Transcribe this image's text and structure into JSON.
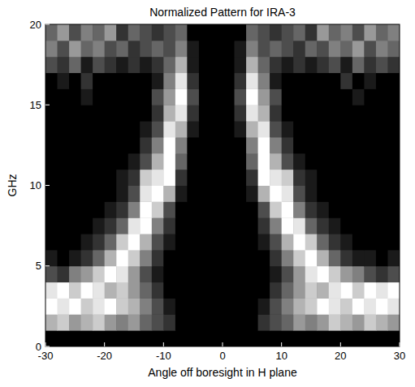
{
  "chart_data": {
    "type": "heatmap",
    "title": "Normalized Pattern for IRA-3",
    "xlabel": "Angle off boresight in H plane",
    "ylabel": "GHz",
    "x": [
      -29,
      -27,
      -25,
      -23,
      -21,
      -19,
      -17,
      -15,
      -13,
      -11,
      -9,
      -7,
      -5,
      -3,
      -1,
      1,
      3,
      5,
      7,
      9,
      11,
      13,
      15,
      17,
      19,
      21,
      23,
      25,
      27,
      29
    ],
    "y": [
      0.5,
      1.5,
      2.5,
      3.5,
      4.5,
      5.5,
      6.5,
      7.5,
      8.5,
      9.5,
      10.5,
      11.5,
      12.5,
      13.5,
      14.5,
      15.5,
      16.5,
      17.5,
      18.5,
      19.5
    ],
    "values": [
      [
        0,
        0,
        0,
        0,
        0,
        0,
        0,
        0,
        0,
        0,
        0,
        0,
        0,
        0,
        0,
        0,
        0,
        0,
        0,
        0,
        0,
        0,
        0,
        0,
        0,
        0,
        0,
        0,
        0,
        0
      ],
      [
        0.7,
        0.8,
        0.6,
        0.7,
        0.8,
        0.6,
        0.5,
        0.6,
        0.4,
        0.3,
        0.2,
        0,
        0,
        0,
        0,
        0,
        0,
        0,
        0.2,
        0.3,
        0.4,
        0.6,
        0.5,
        0.6,
        0.8,
        0.7,
        0.6,
        0.8,
        0.7,
        0.6
      ],
      [
        1,
        0.9,
        1,
        0.8,
        0.9,
        1,
        0.8,
        0.7,
        0.5,
        0.3,
        0.1,
        0,
        0,
        0,
        0,
        0,
        0,
        0,
        0.1,
        0.3,
        0.5,
        0.7,
        0.8,
        1,
        0.9,
        0.8,
        1,
        0.9,
        1,
        0.9
      ],
      [
        0.9,
        1,
        0.8,
        1,
        0.9,
        0.7,
        0.8,
        0.6,
        0.4,
        0.2,
        0,
        0,
        0,
        0,
        0,
        0,
        0,
        0,
        0,
        0.2,
        0.4,
        0.6,
        0.8,
        0.7,
        0.9,
        1,
        0.8,
        1,
        0.9,
        1
      ],
      [
        0.3,
        0.2,
        0.5,
        0.6,
        0.8,
        1,
        0.9,
        0.6,
        0.3,
        0.1,
        0,
        0,
        0,
        0,
        0,
        0,
        0,
        0,
        0,
        0.1,
        0.3,
        0.6,
        0.9,
        1,
        0.8,
        0.6,
        0.5,
        0.3,
        0.2,
        0.3
      ],
      [
        0.1,
        0,
        0.1,
        0.2,
        0.4,
        0.7,
        1,
        0.8,
        0.5,
        0.2,
        0,
        0,
        0,
        0,
        0,
        0,
        0,
        0,
        0,
        0.2,
        0.5,
        0.8,
        1,
        0.7,
        0.4,
        0.2,
        0.1,
        0.1,
        0,
        0.1
      ],
      [
        0,
        0,
        0,
        0.1,
        0.2,
        0.4,
        0.8,
        1,
        0.7,
        0.3,
        0.1,
        0,
        0,
        0,
        0,
        0,
        0,
        0,
        0.1,
        0.3,
        0.7,
        1,
        0.8,
        0.4,
        0.2,
        0.1,
        0,
        0,
        0,
        0
      ],
      [
        0,
        0,
        0,
        0,
        0.1,
        0.2,
        0.4,
        0.9,
        1,
        0.5,
        0.2,
        0,
        0,
        0,
        0,
        0,
        0,
        0,
        0.2,
        0.5,
        1,
        0.9,
        0.4,
        0.2,
        0.1,
        0,
        0,
        0,
        0,
        0
      ],
      [
        0,
        0,
        0,
        0,
        0,
        0.1,
        0.2,
        0.5,
        1,
        0.8,
        0.3,
        0,
        0,
        0,
        0,
        0,
        0,
        0,
        0.3,
        0.8,
        1,
        0.5,
        0.2,
        0.1,
        0,
        0,
        0,
        0,
        0,
        0
      ],
      [
        0,
        0,
        0,
        0,
        0,
        0,
        0.1,
        0.3,
        0.9,
        1,
        0.7,
        0.1,
        0,
        0,
        0,
        0,
        0,
        0.1,
        0.7,
        1,
        0.9,
        0.3,
        0.1,
        0,
        0,
        0,
        0,
        0,
        0,
        0
      ],
      [
        0,
        0,
        0,
        0,
        0,
        0,
        0.1,
        0.2,
        0.8,
        0.9,
        1,
        0.2,
        0,
        0,
        0,
        0,
        0,
        0.2,
        1,
        0.9,
        0.8,
        0.2,
        0.1,
        0,
        0,
        0,
        0,
        0,
        0,
        0
      ],
      [
        0,
        0,
        0,
        0,
        0,
        0,
        0,
        0.1,
        0.3,
        0.7,
        1,
        0.4,
        0,
        0,
        0,
        0,
        0,
        0.4,
        1,
        0.7,
        0.3,
        0.1,
        0,
        0,
        0,
        0,
        0,
        0,
        0,
        0
      ],
      [
        0,
        0,
        0,
        0,
        0,
        0,
        0,
        0,
        0.2,
        0.5,
        1,
        0.5,
        0,
        0,
        0,
        0,
        0,
        0.5,
        1,
        0.5,
        0.2,
        0,
        0,
        0,
        0,
        0,
        0,
        0,
        0,
        0
      ],
      [
        0,
        0,
        0,
        0,
        0,
        0,
        0,
        0,
        0.1,
        0.3,
        0.9,
        0.7,
        0.1,
        0,
        0,
        0,
        0.1,
        0.7,
        0.9,
        0.3,
        0.1,
        0,
        0,
        0,
        0,
        0,
        0,
        0,
        0,
        0
      ],
      [
        0,
        0,
        0,
        0,
        0,
        0,
        0,
        0,
        0,
        0.2,
        0.7,
        0.9,
        0.2,
        0,
        0,
        0,
        0.2,
        0.9,
        0.7,
        0.2,
        0,
        0,
        0,
        0,
        0,
        0,
        0,
        0,
        0,
        0
      ],
      [
        0,
        0,
        0,
        0.1,
        0,
        0,
        0,
        0,
        0,
        0.3,
        0.6,
        1,
        0.3,
        0,
        0,
        0,
        0.3,
        1,
        0.6,
        0.3,
        0,
        0,
        0,
        0,
        0,
        0,
        0.1,
        0,
        0,
        0
      ],
      [
        0,
        0.1,
        0,
        0.2,
        0,
        0,
        0,
        0,
        0,
        0.1,
        0.5,
        0.9,
        0.2,
        0,
        0,
        0,
        0.2,
        0.9,
        0.5,
        0.1,
        0,
        0,
        0,
        0,
        0,
        0.2,
        0,
        0.1,
        0,
        0
      ],
      [
        0.3,
        0.2,
        0.4,
        0.1,
        0.3,
        0.2,
        0.1,
        0.2,
        0.1,
        0.2,
        0.4,
        0.7,
        0.1,
        0,
        0,
        0,
        0.1,
        0.7,
        0.4,
        0.2,
        0.1,
        0.2,
        0.1,
        0.2,
        0.3,
        0.1,
        0.4,
        0.2,
        0.3,
        0.2
      ],
      [
        0.5,
        0.3,
        0.6,
        0.4,
        0.5,
        0.3,
        0.4,
        0.2,
        0.3,
        0.4,
        0.3,
        0.5,
        0.1,
        0,
        0,
        0,
        0.1,
        0.5,
        0.3,
        0.4,
        0.3,
        0.2,
        0.4,
        0.3,
        0.5,
        0.4,
        0.6,
        0.3,
        0.5,
        0.4
      ],
      [
        0.4,
        0.6,
        0.3,
        0.5,
        0.4,
        0.6,
        0.2,
        0.4,
        0.3,
        0.2,
        0.3,
        0.4,
        0,
        0,
        0,
        0,
        0,
        0.4,
        0.3,
        0.2,
        0.3,
        0.4,
        0.2,
        0.6,
        0.4,
        0.5,
        0.3,
        0.6,
        0.4,
        0.5
      ]
    ],
    "xlim": [
      -30,
      30
    ],
    "ylim": [
      0,
      20
    ],
    "xticks": [
      -30,
      -20,
      -10,
      0,
      10,
      20,
      30
    ],
    "yticks": [
      0,
      5,
      10,
      15,
      20
    ]
  }
}
